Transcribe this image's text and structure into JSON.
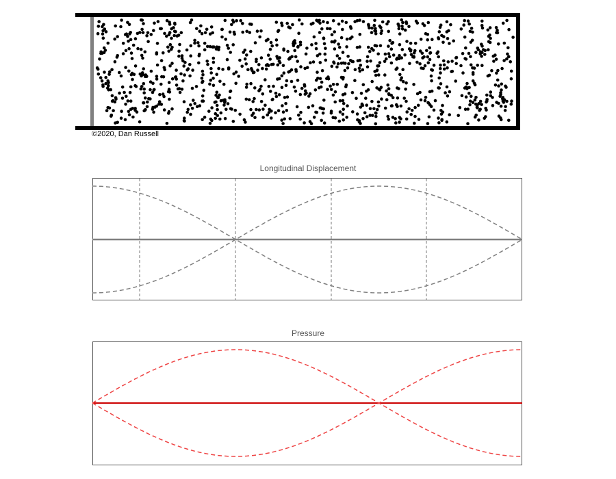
{
  "credit": "©2020, Dan Russell",
  "tube": {
    "wall_color": "#000000",
    "piston_color": "#808080",
    "particle_color": "#000000",
    "particle_count": 1100
  },
  "plots": {
    "displacement": {
      "title": "Longitudinal Displacement",
      "line_color": "#808080",
      "envelope_color": "#808080",
      "spatial_frequency": 0.75,
      "phase": "cos",
      "gridlines": true
    },
    "pressure": {
      "title": "Pressure",
      "line_color": "#cc0000",
      "envelope_color": "#ee4444",
      "spatial_frequency": 0.75,
      "phase": "sin",
      "gridlines": false
    }
  }
}
